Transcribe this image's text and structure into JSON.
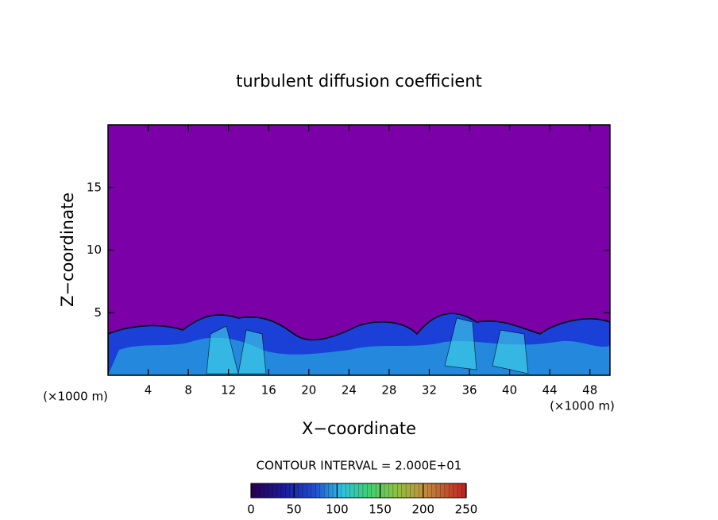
{
  "chart_data": {
    "type": "contour",
    "title": "turbulent diffusion coefficient",
    "x_label": "X−coordinate",
    "y_label": "Z−coordinate",
    "x_unit": "(×1000 m)",
    "y_unit": "(×1000 m)",
    "xlim": [
      0,
      50
    ],
    "xticks": [
      4,
      8,
      12,
      16,
      20,
      24,
      28,
      32,
      36,
      40,
      44,
      48
    ],
    "ylim": [
      0,
      20
    ],
    "yticks": [
      5,
      10,
      15
    ],
    "contour_interval_label": "CONTOUR INTERVAL = 2.000E+01",
    "colorbar": {
      "lim": [
        0,
        250
      ],
      "ticks": [
        0,
        50,
        100,
        150,
        200,
        250
      ]
    }
  }
}
